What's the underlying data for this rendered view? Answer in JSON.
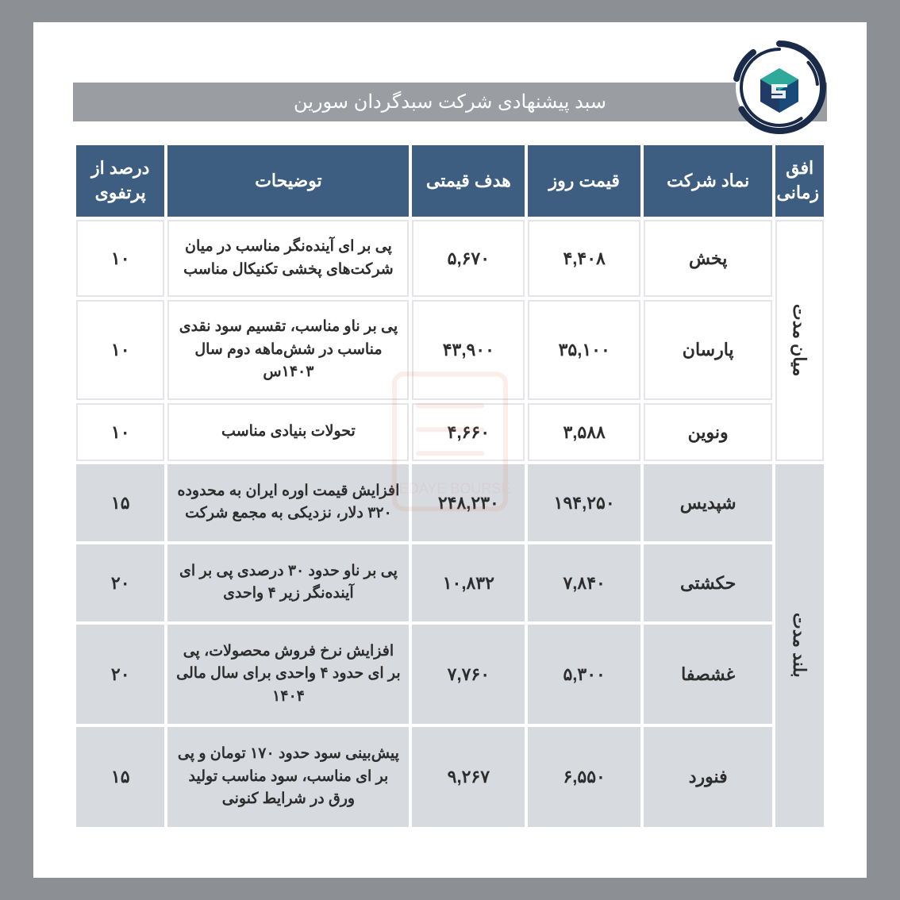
{
  "title": "سبد پیشنهادی شرکت سبدگردان سورین",
  "columns": {
    "horizon": "افق زمانی",
    "symbol": "نماد شرکت",
    "price": "قیمت روز",
    "target": "هدف قیمتی",
    "desc": "توضیحات",
    "pct": "درصد از پرتفوی"
  },
  "groups": [
    {
      "label": "میان مدت",
      "class": "g1",
      "vhclass": "vh",
      "rows": [
        {
          "symbol": "پخش",
          "price": "۴,۴۰۸",
          "target": "۵,۶۷۰",
          "desc": "پی بر ای آینده‌نگر مناسب در میان شرکت‌های پخشی تکنیکال مناسب",
          "pct": "۱۰"
        },
        {
          "symbol": "پارسان",
          "price": "۳۵,۱۰۰",
          "target": "۴۳,۹۰۰",
          "desc": "پی بر ناو مناسب، تقسیم سود نقدی مناسب در شش‌ماهه دوم سال ۱۴۰۳س",
          "pct": "۱۰"
        },
        {
          "symbol": "ونوین",
          "price": "۳,۵۸۸",
          "target": "۴,۶۶۰",
          "desc": "تحولات بنیادی مناسب",
          "pct": "۱۰"
        }
      ]
    },
    {
      "label": "بلند مدت",
      "class": "g2",
      "vhclass": "vh vh2",
      "rows": [
        {
          "symbol": "شپدیس",
          "price": "۱۹۴,۲۵۰",
          "target": "۲۴۸,۲۳۰",
          "desc": "افزایش قیمت اوره ایران به محدوده ۳۲۰ دلار، نزدیکی به مجمع شرکت",
          "pct": "۱۵"
        },
        {
          "symbol": "حکشتی",
          "price": "۷,۸۴۰",
          "target": "۱۰,۸۳۲",
          "desc": "پی بر ناو حدود ۳۰ درصدی پی بر ای آینده‌نگر زیر ۴ واحدی",
          "pct": "۲۰"
        },
        {
          "symbol": "غشصفا",
          "price": "۵,۳۰۰",
          "target": "۷,۷۶۰",
          "desc": "افزایش نرخ فروش محصولات، پی بر ای حدود ۴ واحدی برای سال مالی ۱۴۰۴",
          "pct": "۲۰"
        },
        {
          "symbol": "فنورد",
          "price": "۶,۵۵۰",
          "target": "۹,۲۶۷",
          "desc": "پیش‌بینی سود حدود ۱۷۰ تومان و پی بر ای مناسب، سود مناسب تولید ورق در شرایط کنونی",
          "pct": "۱۵"
        }
      ]
    }
  ],
  "colors": {
    "header_bg": "#3d5e80",
    "header_fg": "#ffffff",
    "title_bg": "#9a9ea3",
    "group1_bg": "#ffffff",
    "group1_border": "#e3e5e8",
    "group2_bg": "#d7dadf",
    "page_bg": "#ffffff",
    "outer_bg": "#8c8f94",
    "logo_ring": "#1a2b4a",
    "logo_cube_dark": "#1f3b66",
    "logo_cube_teal": "#2fa99a"
  }
}
